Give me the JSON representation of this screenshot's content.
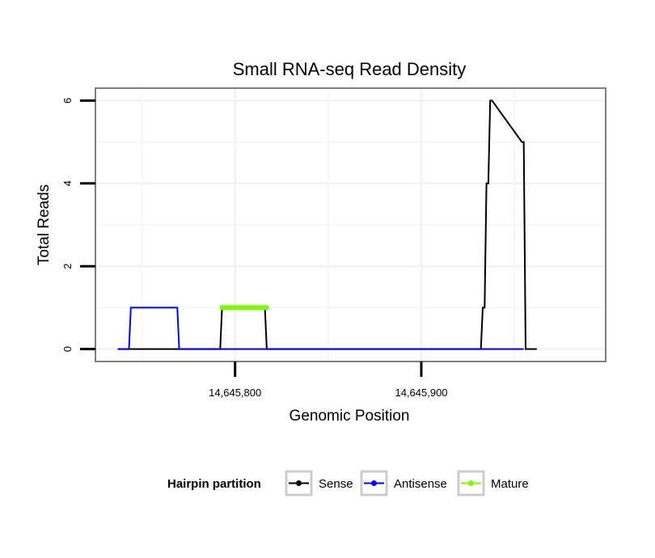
{
  "chart_data": {
    "type": "line",
    "title": "Small RNA-seq Read Density",
    "xlabel": "Genomic Position",
    "ylabel": "Total Reads",
    "xlim": [
      14645725,
      14645999
    ],
    "ylim": [
      -0.3,
      6.3
    ],
    "x_ticks": [
      {
        "value": 14645800,
        "label": "14,645,800"
      },
      {
        "value": 14645900,
        "label": "14,645,900"
      }
    ],
    "y_ticks": [
      {
        "value": 0,
        "label": "0"
      },
      {
        "value": 2,
        "label": "2"
      },
      {
        "value": 4,
        "label": "4"
      },
      {
        "value": 6,
        "label": "6"
      }
    ],
    "grid": true,
    "legend": {
      "title": "Hairpin partition",
      "position": "bottom",
      "entries": [
        {
          "name": "Sense",
          "color": "#000000"
        },
        {
          "name": "Antisense",
          "color": "#0000ff"
        },
        {
          "name": "Mature",
          "color": "#7cfc00"
        }
      ]
    },
    "series": [
      {
        "name": "Sense",
        "color": "#000000",
        "x": [
          14645737,
          14645792,
          14645793,
          14645816,
          14645817,
          14645932,
          14645933,
          14645934,
          14645935,
          14645936,
          14645937,
          14645938,
          14645954,
          14645955,
          14645956,
          14645962
        ],
        "y": [
          0,
          0,
          1,
          1,
          0,
          0,
          1,
          1,
          4,
          4,
          6,
          6,
          5,
          5,
          0,
          0
        ]
      },
      {
        "name": "Antisense",
        "color": "#0000ff",
        "x": [
          14645737,
          14645743,
          14645744,
          14645769,
          14645770,
          14645955
        ],
        "y": [
          0,
          0,
          1,
          1,
          0,
          0
        ]
      },
      {
        "name": "Mature",
        "color": "#7cfc00",
        "x": [
          14645793,
          14645817
        ],
        "y": [
          1,
          1
        ]
      }
    ]
  }
}
